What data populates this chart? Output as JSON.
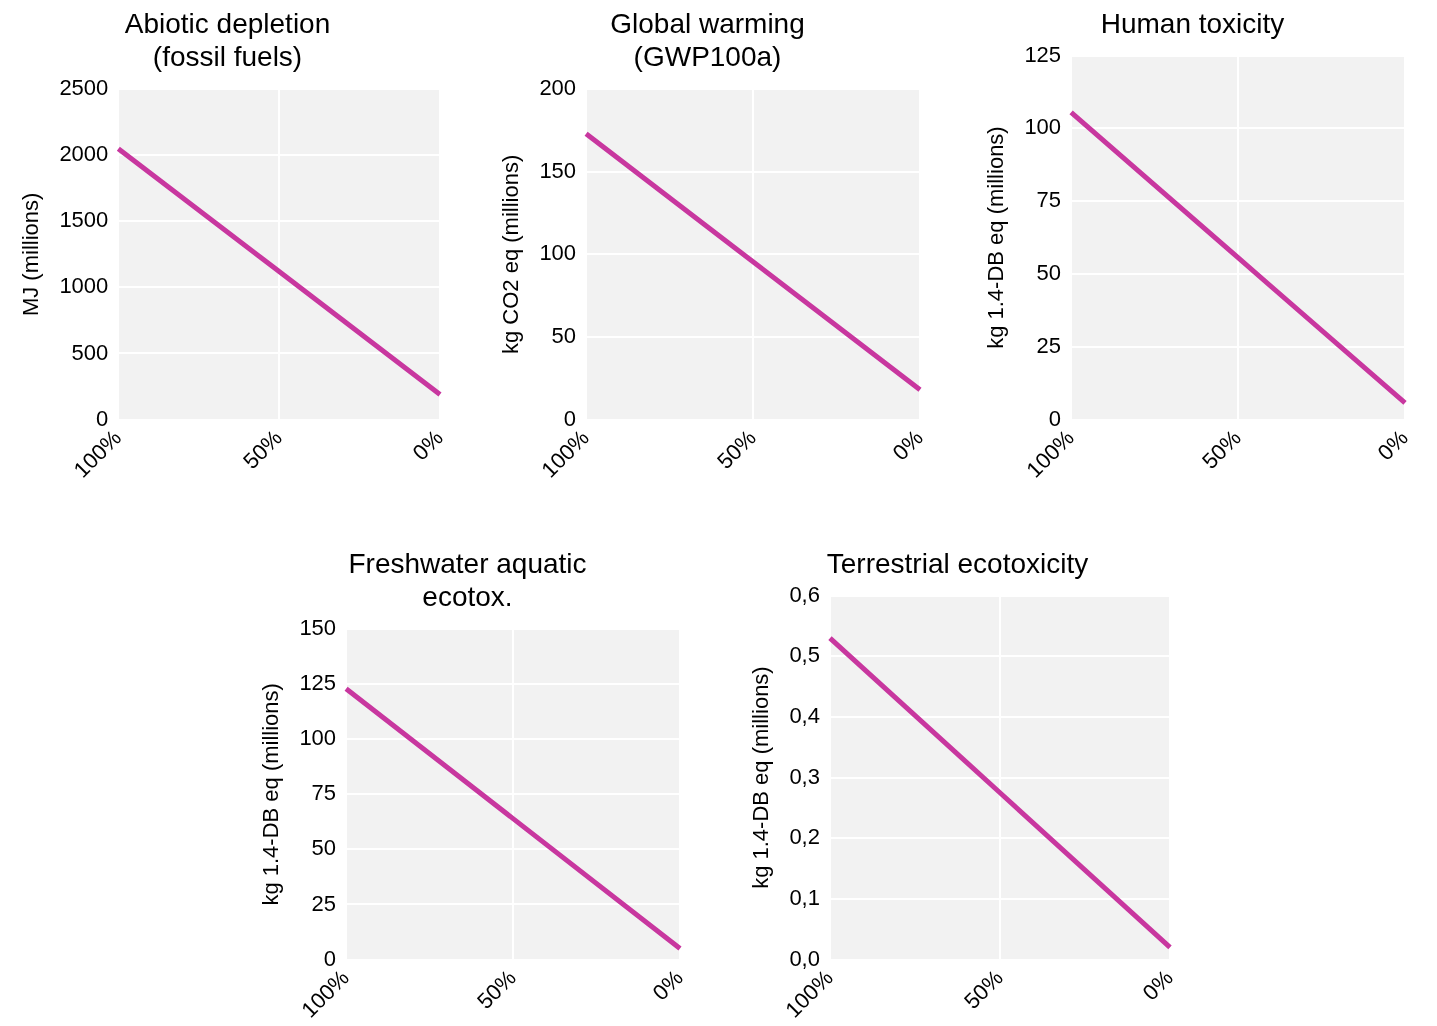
{
  "chart_data": [
    {
      "type": "line",
      "title": "Abiotic depletion\n(fossil fuels)",
      "ylabel": "MJ (millions)",
      "categories": [
        "100%",
        "50%",
        "0%"
      ],
      "series": [
        {
          "color": "#c8379f",
          "values": [
            2050,
            1120,
            190
          ]
        }
      ],
      "ylim": [
        0,
        2500
      ],
      "yticks": [
        0,
        500,
        1000,
        1500,
        2000,
        2500
      ],
      "grid": true
    },
    {
      "type": "line",
      "title": "Global warming\n(GWP100a)",
      "ylabel": "kg CO2 eq (millions)",
      "categories": [
        "100%",
        "50%",
        "0%"
      ],
      "series": [
        {
          "color": "#c8379f",
          "values": [
            173,
            95.5,
            18
          ]
        }
      ],
      "ylim": [
        0,
        200
      ],
      "yticks": [
        0,
        50,
        100,
        150,
        200
      ],
      "grid": true
    },
    {
      "type": "line",
      "title": "Human toxicity",
      "ylabel": "kg 1.4-DB eq (millions)",
      "categories": [
        "100%",
        "50%",
        "0%"
      ],
      "series": [
        {
          "color": "#c8379f",
          "values": [
            105.5,
            55.6,
            5.7
          ]
        }
      ],
      "ylim": [
        0,
        125
      ],
      "yticks": [
        0,
        25,
        50,
        75,
        100,
        125
      ],
      "grid": true
    },
    {
      "type": "line",
      "title": "Freshwater aquatic\necotox.",
      "ylabel": "kg 1.4-DB eq (millions)",
      "categories": [
        "100%",
        "50%",
        "0%"
      ],
      "series": [
        {
          "color": "#c8379f",
          "values": [
            123,
            64,
            5
          ]
        }
      ],
      "ylim": [
        0,
        150
      ],
      "yticks": [
        0,
        25,
        50,
        75,
        100,
        125,
        150
      ],
      "grid": true
    },
    {
      "type": "line",
      "title": "Terrestrial ecotoxicity",
      "ylabel": "kg 1.4-DB eq (millions)",
      "categories": [
        "100%",
        "50%",
        "0%"
      ],
      "series": [
        {
          "color": "#c8379f",
          "values": [
            0.53,
            0.275,
            0.02
          ]
        }
      ],
      "ylim": [
        0,
        0.6
      ],
      "yticks": [
        {
          "value": 0,
          "label": "0,0"
        },
        {
          "value": 0.1,
          "label": "0,1"
        },
        {
          "value": 0.2,
          "label": "0,2"
        },
        {
          "value": 0.3,
          "label": "0,3"
        },
        {
          "value": 0.4,
          "label": "0,4"
        },
        {
          "value": 0.5,
          "label": "0,5"
        },
        {
          "value": 0.6,
          "label": "0,6"
        }
      ],
      "grid": true
    }
  ]
}
